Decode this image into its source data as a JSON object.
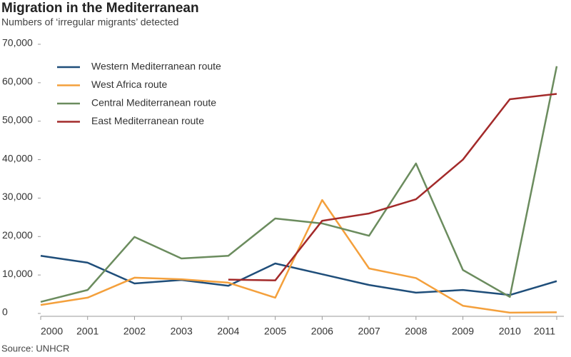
{
  "chart_data": {
    "type": "line",
    "title": "Migration in the Mediterranean",
    "subtitle": "Numbers of ‘irregular migrants’ detected",
    "source": "Source: UNHCR",
    "categories": [
      "2000",
      "2001",
      "2002",
      "2003",
      "2004",
      "2005",
      "2006",
      "2007",
      "2008",
      "2009",
      "2010",
      "2011"
    ],
    "series": [
      {
        "name": "Western Mediterranean route",
        "color": "#1f4e7a",
        "values": [
          15000,
          13200,
          7800,
          8700,
          7200,
          13000,
          10200,
          7400,
          5400,
          6100,
          4800,
          8400
        ]
      },
      {
        "name": "West Africa route",
        "color": "#f4a03c",
        "values": [
          2200,
          4100,
          9300,
          8900,
          8000,
          4100,
          29500,
          11700,
          9200,
          2000,
          200,
          300
        ]
      },
      {
        "name": "Central Mediterranean route",
        "color": "#6b8c5e",
        "values": [
          3000,
          6100,
          19900,
          14300,
          15000,
          24700,
          23400,
          20200,
          39000,
          11300,
          4300,
          64300
        ]
      },
      {
        "name": "East Mediterranean route",
        "color": "#a32a2a",
        "values": [
          null,
          null,
          null,
          null,
          8800,
          8600,
          24100,
          26000,
          29700,
          40000,
          55700,
          57100
        ]
      }
    ],
    "ylim": [
      0,
      70000
    ],
    "yticks": [
      0,
      {
        "value": 10000,
        "label": "10,000"
      },
      {
        "value": 20000,
        "label": "20,000"
      },
      {
        "value": 30000,
        "label": "30,000"
      },
      {
        "value": 40000,
        "label": "40,000"
      },
      {
        "value": 50000,
        "label": "50,000"
      },
      {
        "value": 60000,
        "label": "60,000"
      },
      {
        "value": 70000,
        "label": "70,000"
      }
    ],
    "legend": "top-left"
  }
}
